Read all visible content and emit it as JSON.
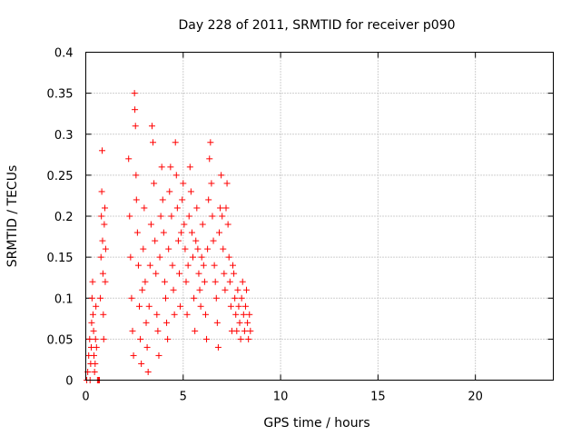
{
  "chart_data": {
    "type": "scatter",
    "title": "Day 228 of 2011, SRMTID for receiver p090",
    "xlabel": "GPS time / hours",
    "ylabel": "SRMTID / TECUs",
    "xlim": [
      0,
      24
    ],
    "ylim": [
      0,
      0.4
    ],
    "x_ticks": [
      0,
      5,
      10,
      15,
      20
    ],
    "x_tick_labels": [
      "0",
      "5",
      "10",
      "15",
      "20"
    ],
    "y_ticks": [
      0,
      0.05,
      0.1,
      0.15,
      0.2,
      0.25,
      0.3,
      0.35,
      0.4
    ],
    "y_tick_labels": [
      "0",
      "0.05",
      "0.1",
      "0.15",
      "0.2",
      "0.25",
      "0.3",
      "0.35",
      "0.4"
    ],
    "grid": true,
    "marker": "+",
    "series": [
      {
        "name": "p090",
        "color": "#ff0000",
        "points": [
          [
            0.05,
            0.0
          ],
          [
            0.1,
            0.01
          ],
          [
            0.15,
            0.03
          ],
          [
            0.2,
            0.05
          ],
          [
            0.22,
            0.0
          ],
          [
            0.25,
            0.02
          ],
          [
            0.28,
            0.04
          ],
          [
            0.3,
            0.07
          ],
          [
            0.32,
            0.1
          ],
          [
            0.35,
            0.12
          ],
          [
            0.37,
            0.08
          ],
          [
            0.4,
            0.06
          ],
          [
            0.42,
            0.03
          ],
          [
            0.45,
            0.01
          ],
          [
            0.48,
            0.02
          ],
          [
            0.5,
            0.05
          ],
          [
            0.52,
            0.09
          ],
          [
            0.55,
            0.04
          ],
          [
            0.6,
            0.0
          ],
          [
            0.65,
            0.0
          ],
          [
            0.7,
            0.0
          ],
          [
            0.75,
            0.1
          ],
          [
            0.78,
            0.15
          ],
          [
            0.8,
            0.2
          ],
          [
            0.82,
            0.23
          ],
          [
            0.84,
            0.28
          ],
          [
            0.86,
            0.17
          ],
          [
            0.88,
            0.13
          ],
          [
            0.9,
            0.08
          ],
          [
            0.92,
            0.05
          ],
          [
            0.95,
            0.19
          ],
          [
            0.98,
            0.21
          ],
          [
            1.0,
            0.12
          ],
          [
            1.02,
            0.16
          ],
          [
            2.2,
            0.27
          ],
          [
            2.25,
            0.2
          ],
          [
            2.3,
            0.15
          ],
          [
            2.35,
            0.1
          ],
          [
            2.4,
            0.06
          ],
          [
            2.45,
            0.03
          ],
          [
            2.5,
            0.35
          ],
          [
            2.52,
            0.33
          ],
          [
            2.55,
            0.31
          ],
          [
            2.58,
            0.25
          ],
          [
            2.6,
            0.22
          ],
          [
            2.65,
            0.18
          ],
          [
            2.7,
            0.14
          ],
          [
            2.75,
            0.09
          ],
          [
            2.8,
            0.05
          ],
          [
            2.85,
            0.02
          ],
          [
            2.9,
            0.11
          ],
          [
            2.95,
            0.16
          ],
          [
            3.0,
            0.21
          ],
          [
            3.05,
            0.12
          ],
          [
            3.1,
            0.07
          ],
          [
            3.15,
            0.04
          ],
          [
            3.2,
            0.01
          ],
          [
            3.25,
            0.09
          ],
          [
            3.3,
            0.14
          ],
          [
            3.35,
            0.19
          ],
          [
            3.4,
            0.31
          ],
          [
            3.45,
            0.29
          ],
          [
            3.5,
            0.24
          ],
          [
            3.55,
            0.17
          ],
          [
            3.6,
            0.13
          ],
          [
            3.65,
            0.08
          ],
          [
            3.7,
            0.06
          ],
          [
            3.75,
            0.03
          ],
          [
            3.8,
            0.15
          ],
          [
            3.85,
            0.2
          ],
          [
            3.9,
            0.26
          ],
          [
            3.95,
            0.22
          ],
          [
            4.0,
            0.18
          ],
          [
            4.05,
            0.12
          ],
          [
            4.1,
            0.1
          ],
          [
            4.15,
            0.07
          ],
          [
            4.2,
            0.05
          ],
          [
            4.25,
            0.16
          ],
          [
            4.3,
            0.23
          ],
          [
            4.35,
            0.26
          ],
          [
            4.4,
            0.2
          ],
          [
            4.45,
            0.14
          ],
          [
            4.5,
            0.11
          ],
          [
            4.55,
            0.08
          ],
          [
            4.6,
            0.29
          ],
          [
            4.65,
            0.25
          ],
          [
            4.7,
            0.21
          ],
          [
            4.75,
            0.17
          ],
          [
            4.8,
            0.13
          ],
          [
            4.85,
            0.09
          ],
          [
            4.9,
            0.18
          ],
          [
            4.95,
            0.22
          ],
          [
            5.0,
            0.24
          ],
          [
            5.05,
            0.19
          ],
          [
            5.1,
            0.16
          ],
          [
            5.15,
            0.12
          ],
          [
            5.2,
            0.08
          ],
          [
            5.25,
            0.14
          ],
          [
            5.3,
            0.2
          ],
          [
            5.35,
            0.26
          ],
          [
            5.4,
            0.23
          ],
          [
            5.45,
            0.18
          ],
          [
            5.5,
            0.15
          ],
          [
            5.55,
            0.1
          ],
          [
            5.6,
            0.06
          ],
          [
            5.65,
            0.17
          ],
          [
            5.7,
            0.21
          ],
          [
            5.75,
            0.16
          ],
          [
            5.8,
            0.13
          ],
          [
            5.85,
            0.11
          ],
          [
            5.9,
            0.09
          ],
          [
            5.95,
            0.15
          ],
          [
            6.0,
            0.19
          ],
          [
            6.05,
            0.14
          ],
          [
            6.1,
            0.12
          ],
          [
            6.15,
            0.08
          ],
          [
            6.2,
            0.05
          ],
          [
            6.25,
            0.16
          ],
          [
            6.3,
            0.22
          ],
          [
            6.35,
            0.27
          ],
          [
            6.4,
            0.29
          ],
          [
            6.45,
            0.24
          ],
          [
            6.5,
            0.2
          ],
          [
            6.55,
            0.17
          ],
          [
            6.6,
            0.14
          ],
          [
            6.65,
            0.12
          ],
          [
            6.7,
            0.1
          ],
          [
            6.75,
            0.07
          ],
          [
            6.8,
            0.04
          ],
          [
            6.85,
            0.18
          ],
          [
            6.9,
            0.21
          ],
          [
            6.95,
            0.25
          ],
          [
            7.0,
            0.2
          ],
          [
            7.05,
            0.16
          ],
          [
            7.1,
            0.13
          ],
          [
            7.15,
            0.11
          ],
          [
            7.2,
            0.21
          ],
          [
            7.25,
            0.24
          ],
          [
            7.3,
            0.19
          ],
          [
            7.35,
            0.15
          ],
          [
            7.4,
            0.12
          ],
          [
            7.45,
            0.09
          ],
          [
            7.5,
            0.06
          ],
          [
            7.55,
            0.14
          ],
          [
            7.6,
            0.13
          ],
          [
            7.65,
            0.1
          ],
          [
            7.7,
            0.08
          ],
          [
            7.75,
            0.06
          ],
          [
            7.8,
            0.11
          ],
          [
            7.85,
            0.09
          ],
          [
            7.9,
            0.07
          ],
          [
            7.95,
            0.05
          ],
          [
            8.0,
            0.1
          ],
          [
            8.05,
            0.12
          ],
          [
            8.1,
            0.08
          ],
          [
            8.15,
            0.06
          ],
          [
            8.2,
            0.09
          ],
          [
            8.25,
            0.11
          ],
          [
            8.3,
            0.07
          ],
          [
            8.35,
            0.05
          ],
          [
            8.4,
            0.08
          ],
          [
            8.45,
            0.06
          ]
        ]
      }
    ]
  }
}
